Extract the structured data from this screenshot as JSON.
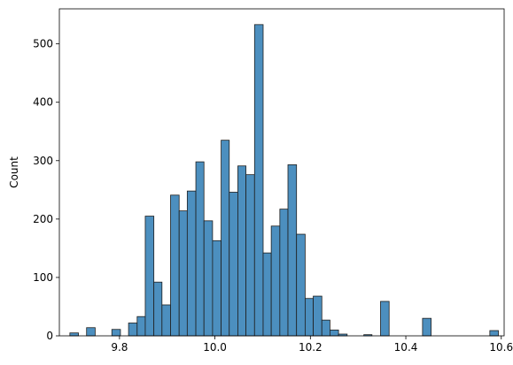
{
  "chart_data": {
    "type": "bar",
    "title": "",
    "xlabel": "",
    "ylabel": "Count",
    "xlim": [
      9.674,
      10.606
    ],
    "ylim": [
      0,
      560
    ],
    "grid": false,
    "bar_color": "#4c8fbf",
    "edge_color": "#1f1f1f",
    "x_ticks": [
      9.8,
      10.0,
      10.2,
      10.4,
      10.6
    ],
    "x_tick_labels": [
      "9.8",
      "10.0",
      "10.2",
      "10.4",
      "10.6"
    ],
    "y_ticks": [
      0,
      100,
      200,
      300,
      400,
      500
    ],
    "y_tick_labels": [
      "0",
      "100",
      "200",
      "300",
      "400",
      "500"
    ],
    "bins": [
      {
        "x0": 9.696,
        "x1": 9.714,
        "count": 5
      },
      {
        "x0": 9.731,
        "x1": 9.749,
        "count": 14
      },
      {
        "x0": 9.784,
        "x1": 9.802,
        "count": 11
      },
      {
        "x0": 9.819,
        "x1": 9.837,
        "count": 22
      },
      {
        "x0": 9.837,
        "x1": 9.854,
        "count": 33
      },
      {
        "x0": 9.854,
        "x1": 9.872,
        "count": 205
      },
      {
        "x0": 9.872,
        "x1": 9.889,
        "count": 92
      },
      {
        "x0": 9.889,
        "x1": 9.907,
        "count": 53
      },
      {
        "x0": 9.907,
        "x1": 9.925,
        "count": 241
      },
      {
        "x0": 9.925,
        "x1": 9.942,
        "count": 214
      },
      {
        "x0": 9.942,
        "x1": 9.96,
        "count": 248
      },
      {
        "x0": 9.96,
        "x1": 9.977,
        "count": 298
      },
      {
        "x0": 9.977,
        "x1": 9.995,
        "count": 197
      },
      {
        "x0": 9.995,
        "x1": 10.013,
        "count": 163
      },
      {
        "x0": 10.013,
        "x1": 10.03,
        "count": 335
      },
      {
        "x0": 10.03,
        "x1": 10.048,
        "count": 246
      },
      {
        "x0": 10.048,
        "x1": 10.065,
        "count": 291
      },
      {
        "x0": 10.065,
        "x1": 10.083,
        "count": 276
      },
      {
        "x0": 10.083,
        "x1": 10.101,
        "count": 533
      },
      {
        "x0": 10.101,
        "x1": 10.118,
        "count": 142
      },
      {
        "x0": 10.118,
        "x1": 10.136,
        "count": 188
      },
      {
        "x0": 10.136,
        "x1": 10.153,
        "count": 217
      },
      {
        "x0": 10.153,
        "x1": 10.171,
        "count": 293
      },
      {
        "x0": 10.171,
        "x1": 10.189,
        "count": 174
      },
      {
        "x0": 10.189,
        "x1": 10.206,
        "count": 64
      },
      {
        "x0": 10.206,
        "x1": 10.224,
        "count": 68
      },
      {
        "x0": 10.224,
        "x1": 10.241,
        "count": 27
      },
      {
        "x0": 10.241,
        "x1": 10.259,
        "count": 10
      },
      {
        "x0": 10.259,
        "x1": 10.277,
        "count": 3
      },
      {
        "x0": 10.312,
        "x1": 10.329,
        "count": 2
      },
      {
        "x0": 10.347,
        "x1": 10.365,
        "count": 59
      },
      {
        "x0": 10.435,
        "x1": 10.453,
        "count": 30
      },
      {
        "x0": 10.576,
        "x1": 10.594,
        "count": 9
      }
    ]
  }
}
